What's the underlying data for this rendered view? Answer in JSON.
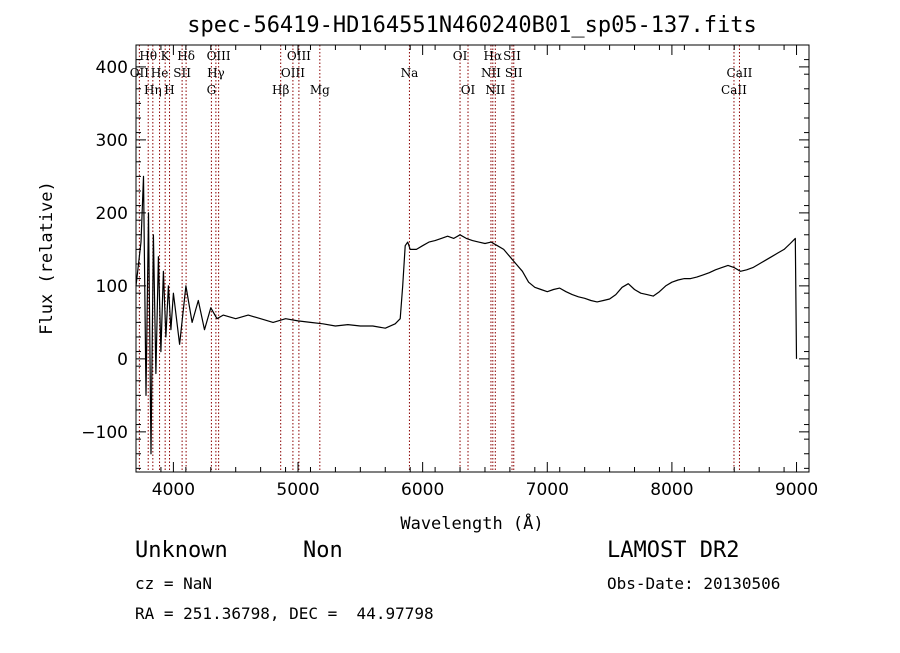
{
  "chart_data": {
    "type": "line",
    "title": "spec-56419-HD164551N460240B01_sp05-137.fits",
    "xlabel": "Wavelength (Å)",
    "ylabel": "Flux (relative)",
    "xlim": [
      3700,
      9100
    ],
    "ylim": [
      -155,
      430
    ],
    "xticks": [
      4000,
      5000,
      6000,
      7000,
      8000,
      9000
    ],
    "yticks": [
      -100,
      0,
      100,
      200,
      300,
      400
    ],
    "grid": false,
    "line_color": "#000000",
    "marker_color": "#8b0000",
    "series": [
      {
        "values_x": [
          3700,
          3740,
          3760,
          3780,
          3800,
          3820,
          3840,
          3860,
          3880,
          3900,
          3920,
          3940,
          3960,
          3980,
          4000,
          4050,
          4100,
          4150,
          4200,
          4250,
          4300,
          4350,
          4400,
          4500,
          4600,
          4700,
          4800,
          4900,
          5000,
          5100,
          5200,
          5300,
          5400,
          5500,
          5600,
          5700,
          5780,
          5820,
          5840,
          5860,
          5880,
          5900,
          5950,
          6000,
          6050,
          6100,
          6150,
          6200,
          6250,
          6300,
          6350,
          6400,
          6450,
          6500,
          6550,
          6600,
          6650,
          6700,
          6750,
          6800,
          6850,
          6900,
          6950,
          7000,
          7050,
          7100,
          7150,
          7200,
          7250,
          7300,
          7350,
          7400,
          7450,
          7500,
          7550,
          7600,
          7650,
          7700,
          7750,
          7800,
          7850,
          7900,
          7950,
          8000,
          8050,
          8100,
          8150,
          8200,
          8250,
          8300,
          8350,
          8400,
          8450,
          8500,
          8550,
          8600,
          8650,
          8700,
          8750,
          8800,
          8850,
          8900,
          8950,
          8990,
          9000
        ],
        "values_y": [
          100,
          160,
          250,
          -50,
          200,
          -130,
          170,
          -20,
          140,
          10,
          120,
          30,
          100,
          40,
          90,
          20,
          100,
          50,
          80,
          40,
          70,
          55,
          60,
          55,
          60,
          55,
          50,
          55,
          52,
          50,
          48,
          45,
          47,
          45,
          45,
          42,
          48,
          55,
          100,
          155,
          160,
          150,
          150,
          155,
          160,
          162,
          165,
          168,
          165,
          170,
          165,
          162,
          160,
          158,
          160,
          155,
          150,
          140,
          130,
          120,
          105,
          98,
          95,
          92,
          95,
          97,
          92,
          88,
          85,
          83,
          80,
          78,
          80,
          82,
          88,
          98,
          103,
          95,
          90,
          88,
          86,
          92,
          100,
          105,
          108,
          110,
          110,
          112,
          115,
          118,
          122,
          125,
          128,
          125,
          120,
          122,
          125,
          130,
          135,
          140,
          145,
          150,
          158,
          165,
          0
        ]
      }
    ],
    "emission_lines": [
      {
        "label": "OII",
        "x": 3727,
        "row": 1
      },
      {
        "label": "Hθ",
        "x": 3798,
        "row": 0
      },
      {
        "label": "Hη",
        "x": 3835,
        "row": 2
      },
      {
        "label": "He",
        "x": 3889,
        "row": 1
      },
      {
        "label": "K",
        "x": 3934,
        "row": 0
      },
      {
        "label": "H",
        "x": 3969,
        "row": 2
      },
      {
        "label": "SII",
        "x": 4070,
        "row": 1
      },
      {
        "label": "Hδ",
        "x": 4102,
        "row": 0
      },
      {
        "label": "G",
        "x": 4305,
        "row": 2
      },
      {
        "label": "Hγ",
        "x": 4341,
        "row": 1
      },
      {
        "label": "OIII",
        "x": 4363,
        "row": 0
      },
      {
        "label": "Hβ",
        "x": 4861,
        "row": 2
      },
      {
        "label": "OIII",
        "x": 4959,
        "row": 1
      },
      {
        "label": "OIII",
        "x": 5007,
        "row": 0
      },
      {
        "label": "Mg",
        "x": 5175,
        "row": 2
      },
      {
        "label": "Na",
        "x": 5894,
        "row": 1
      },
      {
        "label": "OI",
        "x": 6300,
        "row": 0
      },
      {
        "label": "OI",
        "x": 6364,
        "row": 2
      },
      {
        "label": "NII",
        "x": 6548,
        "row": 1
      },
      {
        "label": "Hα",
        "x": 6563,
        "row": 0
      },
      {
        "label": "NII",
        "x": 6583,
        "row": 2
      },
      {
        "label": "SII",
        "x": 6717,
        "row": 0
      },
      {
        "label": "SII",
        "x": 6731,
        "row": 1
      },
      {
        "label": "CaII",
        "x": 8498,
        "row": 2
      },
      {
        "label": "CaII",
        "x": 8542,
        "row": 1
      }
    ]
  },
  "info": {
    "class_name": "Unknown",
    "subclass": "Non",
    "survey": "LAMOST DR2",
    "cz": "cz = NaN",
    "obs_date": "Obs-Date: 20130506",
    "coords": "RA = 251.36798, DEC =  44.97798"
  }
}
